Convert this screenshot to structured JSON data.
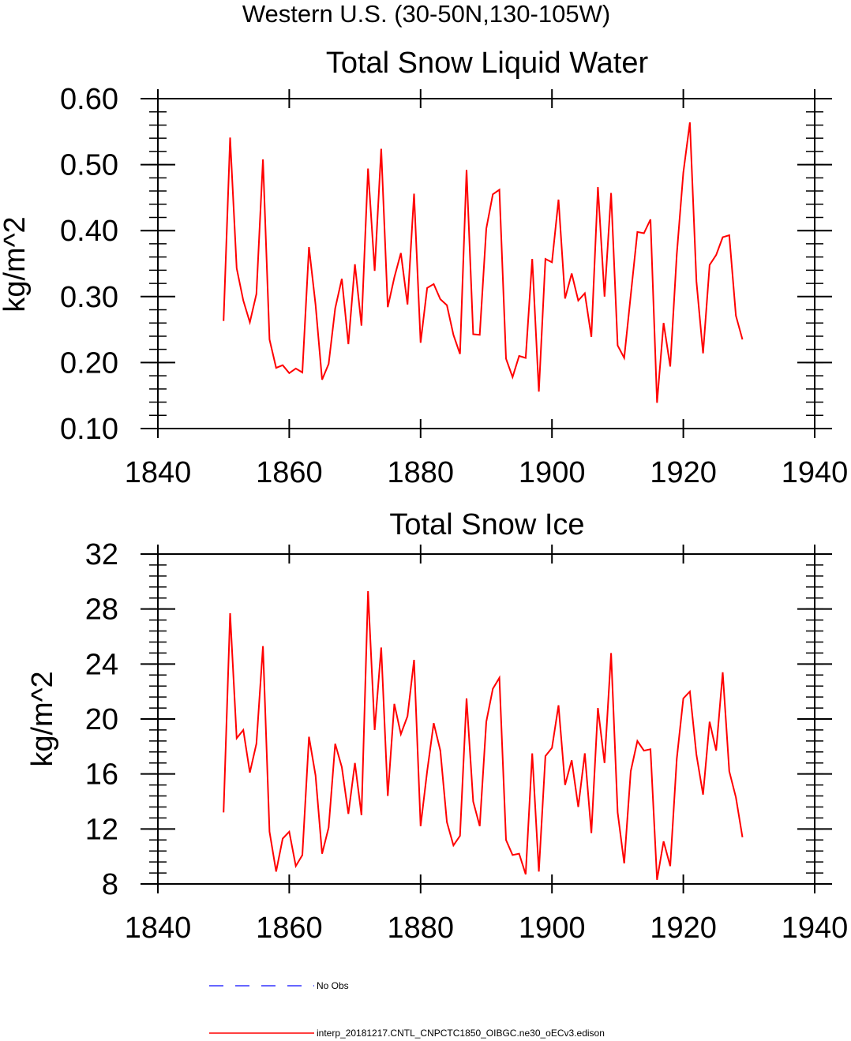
{
  "figure": {
    "title": "Western U.S. (30-50N,130-105W)"
  },
  "chart_data": [
    {
      "type": "line",
      "title": "Total Snow Liquid Water",
      "xlabel": "",
      "ylabel": "kg/m^2",
      "xlim": [
        1840,
        1940
      ],
      "ylim": [
        0.1,
        0.6
      ],
      "xticks": [
        1840,
        1860,
        1880,
        1900,
        1920,
        1940
      ],
      "xtick_labels": [
        "1840",
        "1860",
        "1880",
        "1900",
        "1920",
        "1940"
      ],
      "yticks": [
        0.1,
        0.2,
        0.3,
        0.4,
        0.5,
        0.6
      ],
      "ytick_labels": [
        "0.10",
        "0.20",
        "0.30",
        "0.40",
        "0.50",
        "0.60"
      ],
      "yminor_step": 0.02,
      "x_start": 1850,
      "series": [
        {
          "name": "interp_20181217.CNTL_CNPCTC1850_OIBGC.ne30_oECv3.edison",
          "color": "#ff0000",
          "values": [
            0.263,
            0.541,
            0.343,
            0.294,
            0.261,
            0.304,
            0.508,
            0.235,
            0.192,
            0.196,
            0.184,
            0.191,
            0.185,
            0.375,
            0.288,
            0.174,
            0.198,
            0.282,
            0.327,
            0.228,
            0.349,
            0.256,
            0.494,
            0.339,
            0.524,
            0.284,
            0.329,
            0.366,
            0.288,
            0.456,
            0.23,
            0.313,
            0.319,
            0.296,
            0.287,
            0.242,
            0.213,
            0.492,
            0.243,
            0.242,
            0.403,
            0.455,
            0.462,
            0.206,
            0.178,
            0.21,
            0.207,
            0.357,
            0.156,
            0.357,
            0.352,
            0.447,
            0.297,
            0.335,
            0.294,
            0.305,
            0.239,
            0.466,
            0.3,
            0.457,
            0.226,
            0.207,
            0.302,
            0.398,
            0.396,
            0.417,
            0.139,
            0.26,
            0.194,
            0.364,
            0.488,
            0.564,
            0.323,
            0.214,
            0.348,
            0.363,
            0.39,
            0.393,
            0.271,
            0.235
          ]
        }
      ]
    },
    {
      "type": "line",
      "title": "Total Snow Ice",
      "xlabel": "",
      "ylabel": "kg/m^2",
      "xlim": [
        1840,
        1940
      ],
      "ylim": [
        8,
        32
      ],
      "xticks": [
        1840,
        1860,
        1880,
        1900,
        1920,
        1940
      ],
      "xtick_labels": [
        "1840",
        "1860",
        "1880",
        "1900",
        "1920",
        "1940"
      ],
      "yticks": [
        8,
        12,
        16,
        20,
        24,
        28,
        32
      ],
      "ytick_labels": [
        "8",
        "12",
        "16",
        "20",
        "24",
        "28",
        "32"
      ],
      "yminor_step": 0.8,
      "x_start": 1850,
      "series": [
        {
          "name": "interp_20181217.CNTL_CNPCTC1850_OIBGC.ne30_oECv3.edison",
          "color": "#ff0000",
          "values": [
            13.2,
            27.7,
            18.6,
            19.2,
            16.1,
            18.2,
            25.3,
            11.8,
            8.9,
            11.3,
            11.8,
            9.3,
            10.1,
            18.7,
            15.9,
            10.2,
            12.1,
            18.2,
            16.5,
            13.1,
            16.8,
            13.0,
            29.3,
            19.2,
            25.2,
            14.4,
            21.1,
            18.9,
            20.2,
            24.3,
            12.2,
            16.2,
            19.7,
            17.7,
            12.5,
            10.8,
            11.5,
            21.5,
            14.0,
            12.2,
            19.8,
            22.2,
            23.0,
            11.2,
            10.1,
            10.2,
            8.7,
            17.5,
            8.9,
            17.3,
            17.9,
            21.0,
            15.2,
            17.0,
            13.6,
            17.5,
            11.7,
            20.8,
            16.8,
            24.8,
            13.2,
            9.5,
            16.2,
            18.4,
            17.7,
            17.8,
            8.3,
            11.1,
            9.3,
            17.1,
            21.5,
            22.0,
            17.4,
            14.5,
            19.8,
            17.7,
            23.4,
            16.2,
            14.3,
            11.4
          ]
        }
      ]
    }
  ],
  "legend": {
    "items": [
      {
        "label": "No Obs",
        "color": "#3333ff",
        "style": "dashed"
      },
      {
        "label": "interp_20181217.CNTL_CNPCTC1850_OIBGC.ne30_oECv3.edison",
        "color": "#ff0000",
        "style": "solid"
      }
    ]
  }
}
